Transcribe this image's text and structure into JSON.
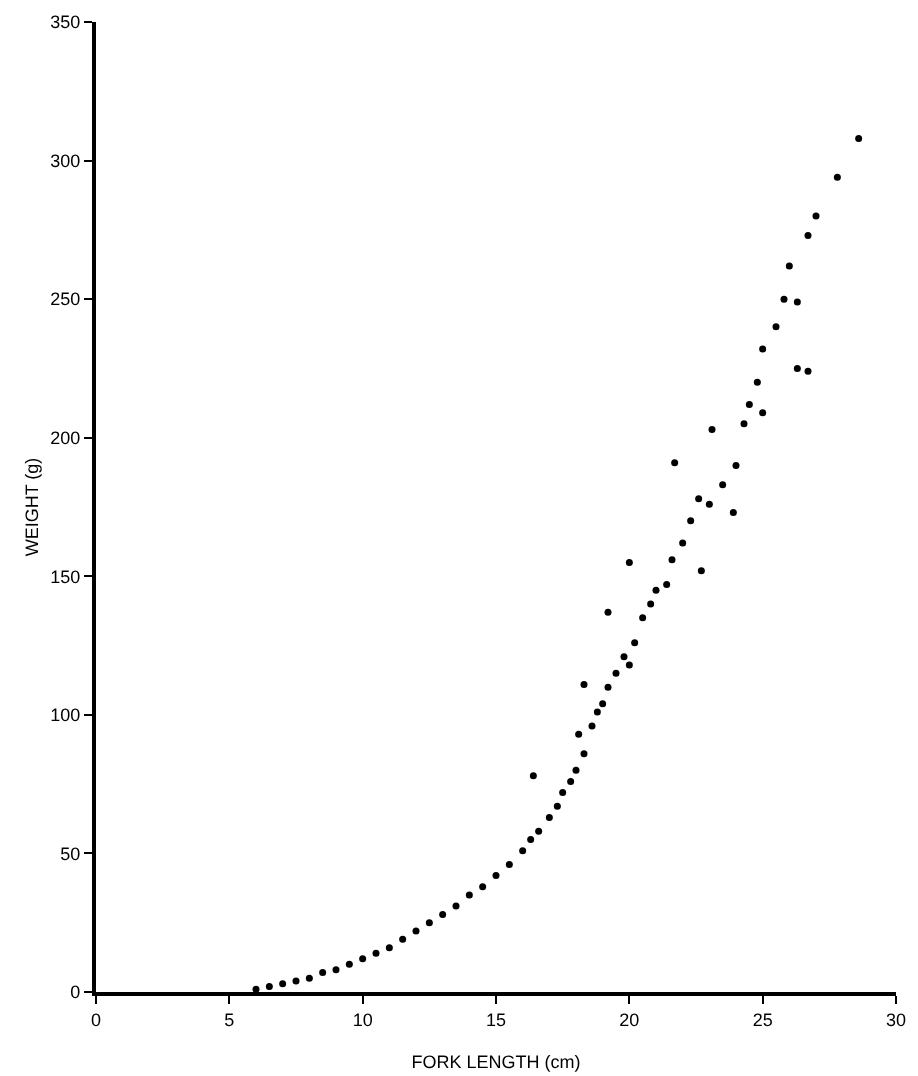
{
  "chart_data": {
    "type": "scatter",
    "xlabel": "FORK LENGTH (cm)",
    "ylabel": "WEIGHT (g)",
    "x": [
      6.0,
      6.5,
      7,
      7.5,
      8,
      8.5,
      9,
      9.5,
      10,
      10.5,
      11,
      11.5,
      12,
      12.5,
      13,
      13.5,
      14,
      14.5,
      15,
      15.5,
      16,
      16.3,
      16.4,
      16.6,
      17,
      17.3,
      17.5,
      17.8,
      18,
      18.1,
      18.3,
      18.3,
      18.6,
      18.8,
      19,
      19.2,
      19.2,
      19.5,
      19.8,
      20,
      20,
      20.2,
      20.5,
      20.8,
      21,
      21.4,
      21.6,
      21.7,
      22,
      22.3,
      22.6,
      22.7,
      23,
      23.1,
      23.5,
      23.9,
      24,
      24.3,
      24.5,
      24.8,
      25,
      25,
      25.5,
      25.8,
      26,
      26.3,
      26.3,
      26.7,
      26.7,
      27,
      27.8,
      28.6
    ],
    "values": [
      1,
      2,
      3,
      4,
      5,
      7,
      8,
      10,
      12,
      14,
      16,
      19,
      22,
      25,
      28,
      31,
      35,
      38,
      42,
      46,
      51,
      55,
      78,
      58,
      63,
      67,
      72,
      76,
      80,
      93,
      86,
      111,
      96,
      101,
      104,
      110,
      137,
      115,
      121,
      118,
      155,
      126,
      135,
      140,
      145,
      147,
      156,
      191,
      162,
      170,
      178,
      152,
      176,
      203,
      183,
      173,
      190,
      205,
      212,
      220,
      232,
      209,
      240,
      250,
      262,
      225,
      249,
      273,
      224,
      280,
      294,
      308
    ],
    "color": "#000000",
    "marker": "circle",
    "xlim": [
      0,
      30
    ],
    "xticks": [
      0,
      5,
      10,
      15,
      20,
      25,
      30
    ],
    "ylim": [
      0,
      350
    ],
    "yticks": [
      0,
      50,
      100,
      150,
      200,
      250,
      300,
      350
    ],
    "grid": false,
    "legend": false
  }
}
